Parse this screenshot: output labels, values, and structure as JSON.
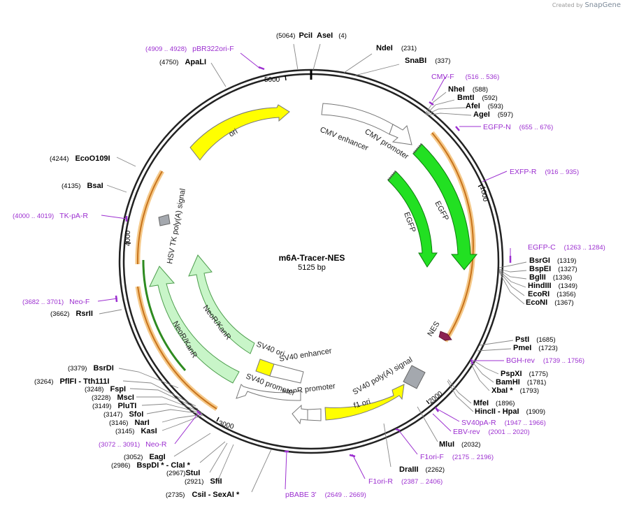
{
  "credit": {
    "prefix": "Created by",
    "brand": "SnapGene"
  },
  "plasmid": {
    "name": "m6A-Tracer-NES",
    "size": "5125 bp"
  },
  "ticks": [
    "5000",
    "1000",
    "2000",
    "3000",
    "4000"
  ],
  "features": {
    "ori": "ori",
    "cmv_enhancer": "CMV enhancer",
    "cmv_promoter": "CMV promoter",
    "egfp_outer": "EGFP",
    "egfp_inner": "EGFP",
    "nes": "NES",
    "sv40_polya": "SV40 poly(A) signal",
    "f1_ori": "f1 ori",
    "ampr_promoter": "AmpR promoter",
    "sv40_promoter": "SV40 promoter",
    "sv40_enhancer": "SV40 enhancer",
    "sv40_ori": "SV40 ori",
    "neor_inner": "NeoR/KanR",
    "neor_outer": "NeoR/KanR",
    "hsv_tk": "HSV TK poly(A) signal"
  },
  "sites": {
    "pcii": {
      "name": "PciI",
      "pos": "(5064)"
    },
    "asei": {
      "name": "AseI",
      "pos": "(4)"
    },
    "ndei": {
      "name": "NdeI",
      "pos": "(231)"
    },
    "snabi": {
      "name": "SnaBI",
      "pos": "(337)"
    },
    "nhei": {
      "name": "NheI",
      "pos": "(588)"
    },
    "bmti": {
      "name": "BmtI",
      "pos": "(592)"
    },
    "afei": {
      "name": "AfeI",
      "pos": "(593)"
    },
    "agei": {
      "name": "AgeI",
      "pos": "(597)"
    },
    "bsrgi": {
      "name": "BsrGI",
      "pos": "(1319)"
    },
    "bspei": {
      "name": "BspEI",
      "pos": "(1327)"
    },
    "bglii": {
      "name": "BglII",
      "pos": "(1336)"
    },
    "hindiii": {
      "name": "HindIII",
      "pos": "(1349)"
    },
    "ecori": {
      "name": "EcoRI",
      "pos": "(1356)"
    },
    "econi": {
      "name": "EcoNI",
      "pos": "(1367)"
    },
    "psti": {
      "name": "PstI",
      "pos": "(1685)"
    },
    "pmei": {
      "name": "PmeI",
      "pos": "(1723)"
    },
    "pspxi": {
      "name": "PspXI",
      "pos": "(1775)"
    },
    "bamhi": {
      "name": "BamHI",
      "pos": "(1781)"
    },
    "xbai": {
      "name": "XbaI *",
      "pos": "(1793)"
    },
    "mfei": {
      "name": "MfeI",
      "pos": "(1896)"
    },
    "hincii": {
      "name": "HincII - HpaI",
      "pos": "(1909)"
    },
    "mlui": {
      "name": "MluI",
      "pos": "(2032)"
    },
    "draiii": {
      "name": "DraIII",
      "pos": "(2262)"
    },
    "csii": {
      "name": "CsiI - SexAI *",
      "pos": "(2735)"
    },
    "sfii": {
      "name": "SfiI",
      "pos": "(2921)"
    },
    "stui": {
      "name": "StuI",
      "pos": "(2967)"
    },
    "bspdi": {
      "name": "BspDI * - ClaI *",
      "pos": "(2986)"
    },
    "eagi": {
      "name": "EagI",
      "pos": "(3052)"
    },
    "kasi": {
      "name": "KasI",
      "pos": "(3145)"
    },
    "nari": {
      "name": "NarI",
      "pos": "(3146)"
    },
    "sfoi": {
      "name": "SfoI",
      "pos": "(3147)"
    },
    "pluti": {
      "name": "PluTI",
      "pos": "(3149)"
    },
    "msci": {
      "name": "MscI",
      "pos": "(3228)"
    },
    "fspi": {
      "name": "FspI",
      "pos": "(3248)"
    },
    "pflfi": {
      "name": "PflFI - Tth111I",
      "pos": "(3264)"
    },
    "bsrdi": {
      "name": "BsrDI",
      "pos": "(3379)"
    },
    "rsrii": {
      "name": "RsrII",
      "pos": "(3662)"
    },
    "bsai": {
      "name": "BsaI",
      "pos": "(4135)"
    },
    "ecoo109i": {
      "name": "EcoO109I",
      "pos": "(4244)"
    },
    "apali": {
      "name": "ApaLI",
      "pos": "(4750)"
    }
  },
  "primers": {
    "pbr322": {
      "name": "pBR322ori-F",
      "pos": "(4909 .. 4928)"
    },
    "cmvf": {
      "name": "CMV-F",
      "pos": "(516 .. 536)"
    },
    "egfpn": {
      "name": "EGFP-N",
      "pos": "(655 .. 676)"
    },
    "exfpr": {
      "name": "EXFP-R",
      "pos": "(916 .. 935)"
    },
    "egfpc": {
      "name": "EGFP-C",
      "pos": "(1263 .. 1284)"
    },
    "bghrev": {
      "name": "BGH-rev",
      "pos": "(1739 .. 1756)"
    },
    "sv40par": {
      "name": "SV40pA-R",
      "pos": "(1947 .. 1966)"
    },
    "ebvrev": {
      "name": "EBV-rev",
      "pos": "(2001 .. 2020)"
    },
    "f1orif": {
      "name": "F1ori-F",
      "pos": "(2175 .. 2196)"
    },
    "f1orir": {
      "name": "F1ori-R",
      "pos": "(2387 .. 2406)"
    },
    "pbabe3": {
      "name": "pBABE 3'",
      "pos": "(2649 .. 2669)"
    },
    "neor": {
      "name": "Neo-R",
      "pos": "(3072 .. 3091)"
    },
    "neof": {
      "name": "Neo-F",
      "pos": "(3682 .. 3701)"
    },
    "tkpar": {
      "name": "TK-pA-R",
      "pos": "(4000 .. 4019)"
    }
  }
}
